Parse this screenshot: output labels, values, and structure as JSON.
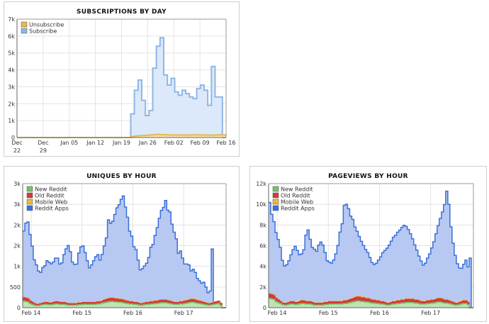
{
  "chart_data": [
    {
      "type": "area",
      "title": "SUBSCRIPTIONS BY DAY",
      "ylim": [
        0,
        7000
      ],
      "yticks": [
        0,
        1000,
        2000,
        3000,
        4000,
        5000,
        6000,
        7000
      ],
      "ytick_labels": [
        "0",
        "1k",
        "2k",
        "3k",
        "4k",
        "5k",
        "6k",
        "7k"
      ],
      "xticks": [
        0,
        7,
        14,
        21,
        28,
        35,
        42,
        49,
        56
      ],
      "xtick_labels": [
        "Dec 22",
        "Dec 29",
        "Jan 05",
        "Jan 12",
        "Jan 19",
        "Jan 26",
        "Feb 02",
        "Feb 09",
        "Feb 16"
      ],
      "xlim": [
        0,
        56
      ],
      "grid": true,
      "legend": "top-left",
      "stacked": false,
      "series": [
        {
          "name": "Unsubscribe",
          "color": "#e8b84a",
          "values": [
            0,
            0,
            0,
            0,
            0,
            0,
            0,
            0,
            0,
            0,
            0,
            0,
            0,
            0,
            0,
            0,
            0,
            0,
            0,
            0,
            0,
            0,
            0,
            0,
            0,
            0,
            0,
            0,
            0,
            0,
            0,
            60,
            90,
            110,
            120,
            130,
            150,
            170,
            180,
            170,
            160,
            150,
            150,
            140,
            150,
            150,
            140,
            150,
            160,
            150,
            140,
            150,
            140,
            140,
            150,
            160,
            150,
            140
          ]
        },
        {
          "name": "Subscribe",
          "color": "#8fb6e6",
          "values": [
            0,
            0,
            0,
            0,
            0,
            0,
            0,
            0,
            0,
            0,
            0,
            0,
            0,
            0,
            0,
            0,
            0,
            0,
            0,
            0,
            0,
            0,
            0,
            0,
            0,
            0,
            0,
            0,
            0,
            0,
            0,
            1400,
            2800,
            3400,
            2200,
            1300,
            1600,
            4100,
            5400,
            5900,
            3700,
            3100,
            3500,
            2700,
            2500,
            2800,
            2600,
            2400,
            2300,
            2900,
            3100,
            2800,
            1900,
            4200,
            2400,
            2400,
            0
          ]
        }
      ]
    },
    {
      "type": "area",
      "title": "UNIQUES BY HOUR",
      "ylim": [
        0,
        3000
      ],
      "yticks": [
        0,
        500,
        1000,
        1500,
        2000,
        2500,
        3000
      ],
      "ytick_labels": [
        "0",
        "500",
        "1k",
        "2k",
        "2k",
        "3k",
        "3k"
      ],
      "xticks": [
        4,
        28,
        52,
        76
      ],
      "xtick_labels": [
        "Feb 14",
        "Feb 15",
        "Feb 16",
        "Feb 17"
      ],
      "xlim": [
        0,
        96
      ],
      "grid": true,
      "legend": "top-left",
      "stacked": true,
      "series": [
        {
          "name": "New Reddit",
          "color": "#77c16b",
          "values": [
            160,
            150,
            140,
            100,
            80,
            60,
            50,
            50,
            60,
            70,
            80,
            80,
            70,
            70,
            80,
            90,
            90,
            80,
            80,
            80,
            70,
            60,
            60,
            60,
            60,
            60,
            70,
            70,
            80,
            80,
            80,
            80,
            80,
            80,
            80,
            90,
            90,
            100,
            120,
            130,
            140,
            150,
            150,
            140,
            140,
            130,
            130,
            120,
            110,
            100,
            90,
            90,
            80,
            80,
            70,
            60,
            60,
            70,
            80,
            80,
            90,
            90,
            100,
            100,
            110,
            120,
            120,
            120,
            110,
            100,
            90,
            80,
            80,
            80,
            90,
            90,
            100,
            110,
            120,
            130,
            130,
            120,
            110,
            100,
            90,
            80,
            70,
            60,
            60,
            70,
            80,
            90,
            100,
            60,
            0,
            0,
            0
          ]
        },
        {
          "name": "Old Reddit",
          "color": "#d23b3b",
          "values": [
            80,
            80,
            70,
            60,
            50,
            40,
            30,
            30,
            35,
            40,
            45,
            45,
            40,
            40,
            45,
            50,
            50,
            45,
            45,
            45,
            40,
            35,
            35,
            35,
            35,
            35,
            40,
            40,
            45,
            45,
            45,
            45,
            45,
            45,
            45,
            50,
            50,
            55,
            60,
            65,
            70,
            75,
            75,
            70,
            70,
            65,
            65,
            60,
            55,
            55,
            50,
            50,
            45,
            45,
            40,
            35,
            35,
            40,
            45,
            45,
            50,
            50,
            55,
            55,
            60,
            60,
            60,
            60,
            55,
            55,
            50,
            45,
            45,
            45,
            50,
            50,
            55,
            55,
            60,
            65,
            65,
            60,
            55,
            55,
            50,
            45,
            40,
            35,
            35,
            40,
            45,
            50,
            50,
            40,
            0,
            0,
            0
          ]
        },
        {
          "name": "Mobile Web",
          "color": "#f2b631",
          "values": [
            15,
            15,
            15,
            12,
            10,
            10,
            8,
            8,
            8,
            9,
            10,
            10,
            10,
            10,
            10,
            11,
            11,
            10,
            10,
            10,
            10,
            9,
            9,
            9,
            9,
            9,
            10,
            10,
            10,
            10,
            10,
            10,
            10,
            10,
            10,
            11,
            11,
            12,
            13,
            14,
            15,
            16,
            16,
            15,
            15,
            14,
            14,
            13,
            12,
            12,
            11,
            11,
            10,
            10,
            10,
            9,
            9,
            10,
            10,
            10,
            11,
            11,
            12,
            12,
            13,
            13,
            13,
            13,
            12,
            12,
            11,
            10,
            10,
            10,
            11,
            11,
            12,
            12,
            13,
            14,
            14,
            13,
            12,
            12,
            11,
            10,
            10,
            9,
            9,
            10,
            10,
            11,
            11,
            10,
            0,
            0,
            0
          ]
        },
        {
          "name": "Reddit Apps",
          "color": "#3a6fd8",
          "values": [
            1600,
            1800,
            1850,
            1600,
            1350,
            1050,
            950,
            800,
            750,
            850,
            880,
            1000,
            980,
            940,
            970,
            1050,
            1050,
            920,
            950,
            1150,
            1300,
            1400,
            1250,
            1000,
            940,
            950,
            1200,
            1350,
            1360,
            1200,
            1000,
            830,
            900,
            1000,
            1100,
            1130,
            1000,
            1120,
            1300,
            1480,
            1900,
            1800,
            1850,
            2030,
            2190,
            2280,
            2410,
            2510,
            2260,
            2020,
            1700,
            1580,
            1340,
            1270,
            1030,
            810,
            840,
            890,
            940,
            1080,
            1310,
            1380,
            1580,
            1770,
            1980,
            2160,
            2230,
            2400,
            2180,
            2150,
            1870,
            1690,
            1530,
            1180,
            1220,
            1050,
            890,
            880,
            840,
            680,
            720,
            660,
            530,
            480,
            440,
            480,
            380,
            260,
            300,
            1300,
            0,
            0,
            0,
            0,
            0,
            0
          ]
        }
      ]
    },
    {
      "type": "area",
      "title": "PAGEVIEWS BY HOUR",
      "ylim": [
        0,
        12000
      ],
      "yticks": [
        0,
        2000,
        4000,
        6000,
        8000,
        10000,
        12000
      ],
      "ytick_labels": [
        "0",
        "2k",
        "4k",
        "6k",
        "8k",
        "10k",
        "12k"
      ],
      "xticks": [
        4,
        28,
        52,
        76
      ],
      "xtick_labels": [
        "Feb 14",
        "Feb 15",
        "Feb 16",
        "Feb 17"
      ],
      "xlim": [
        0,
        96
      ],
      "grid": true,
      "legend": "top-left",
      "stacked": true,
      "series": [
        {
          "name": "New Reddit",
          "color": "#77c16b",
          "values": [
            900,
            850,
            800,
            600,
            500,
            400,
            300,
            250,
            250,
            300,
            350,
            350,
            300,
            300,
            350,
            400,
            400,
            350,
            350,
            350,
            300,
            250,
            250,
            250,
            250,
            250,
            300,
            300,
            350,
            350,
            350,
            350,
            350,
            350,
            350,
            400,
            400,
            450,
            500,
            550,
            600,
            650,
            650,
            600,
            600,
            550,
            550,
            500,
            450,
            450,
            400,
            400,
            350,
            350,
            300,
            250,
            250,
            300,
            350,
            350,
            400,
            400,
            450,
            450,
            500,
            500,
            500,
            500,
            450,
            450,
            400,
            350,
            350,
            350,
            400,
            400,
            450,
            450,
            500,
            550,
            550,
            500,
            450,
            450,
            400,
            350,
            300,
            250,
            250,
            300,
            350,
            400,
            400,
            300,
            0,
            0,
            0
          ]
        },
        {
          "name": "Old Reddit",
          "color": "#d23b3b",
          "values": [
            400,
            400,
            350,
            300,
            250,
            200,
            150,
            150,
            170,
            200,
            220,
            220,
            200,
            200,
            220,
            250,
            250,
            220,
            220,
            220,
            200,
            170,
            170,
            170,
            170,
            170,
            200,
            200,
            220,
            220,
            220,
            220,
            220,
            220,
            220,
            250,
            250,
            270,
            300,
            320,
            350,
            370,
            370,
            350,
            350,
            320,
            320,
            300,
            270,
            270,
            250,
            250,
            220,
            220,
            200,
            170,
            170,
            200,
            220,
            220,
            250,
            250,
            270,
            270,
            300,
            300,
            300,
            300,
            270,
            270,
            250,
            220,
            220,
            220,
            250,
            250,
            270,
            270,
            300,
            320,
            320,
            300,
            270,
            270,
            250,
            220,
            200,
            170,
            170,
            200,
            220,
            250,
            250,
            200,
            0,
            0,
            0
          ]
        },
        {
          "name": "Mobile Web",
          "color": "#f2b631",
          "values": [
            80,
            80,
            70,
            60,
            50,
            40,
            30,
            30,
            35,
            40,
            45,
            45,
            40,
            40,
            45,
            50,
            50,
            45,
            45,
            45,
            40,
            35,
            35,
            35,
            35,
            35,
            40,
            40,
            45,
            45,
            45,
            45,
            45,
            45,
            45,
            50,
            50,
            55,
            60,
            65,
            70,
            75,
            75,
            70,
            70,
            65,
            65,
            60,
            55,
            55,
            50,
            50,
            45,
            45,
            40,
            35,
            35,
            40,
            45,
            45,
            50,
            50,
            55,
            55,
            60,
            60,
            60,
            60,
            55,
            55,
            50,
            45,
            45,
            45,
            50,
            50,
            55,
            55,
            60,
            65,
            65,
            60,
            55,
            55,
            50,
            45,
            40,
            35,
            35,
            40,
            45,
            50,
            50,
            40,
            0,
            0,
            0
          ]
        },
        {
          "name": "Reddit Apps",
          "color": "#3a6fd8",
          "values": [
            8800,
            7700,
            7100,
            6300,
            5800,
            5200,
            4100,
            3600,
            3700,
            4000,
            4500,
            5000,
            5400,
            5000,
            4500,
            4500,
            4900,
            6400,
            6900,
            6000,
            5300,
            5200,
            5000,
            5600,
            5900,
            5600,
            4800,
            4000,
            3800,
            3700,
            4000,
            4600,
            5400,
            6700,
            7500,
            9200,
            9300,
            8800,
            8000,
            7600,
            6800,
            6300,
            5800,
            5400,
            5000,
            4700,
            4400,
            4000,
            3600,
            3400,
            3600,
            3900,
            4300,
            4700,
            5000,
            5300,
            5600,
            5900,
            6200,
            6400,
            6600,
            6800,
            7000,
            7200,
            7000,
            6700,
            6300,
            5800,
            5300,
            4800,
            4300,
            3900,
            3500,
            3700,
            4100,
            4500,
            5000,
            5600,
            6300,
            7000,
            7700,
            8400,
            9200,
            10500,
            9300,
            7200,
            5700,
            4600,
            3800,
            3300,
            3200,
            3500,
            3900,
            3400,
            4800,
            0,
            0,
            0,
            0
          ]
        }
      ]
    }
  ]
}
